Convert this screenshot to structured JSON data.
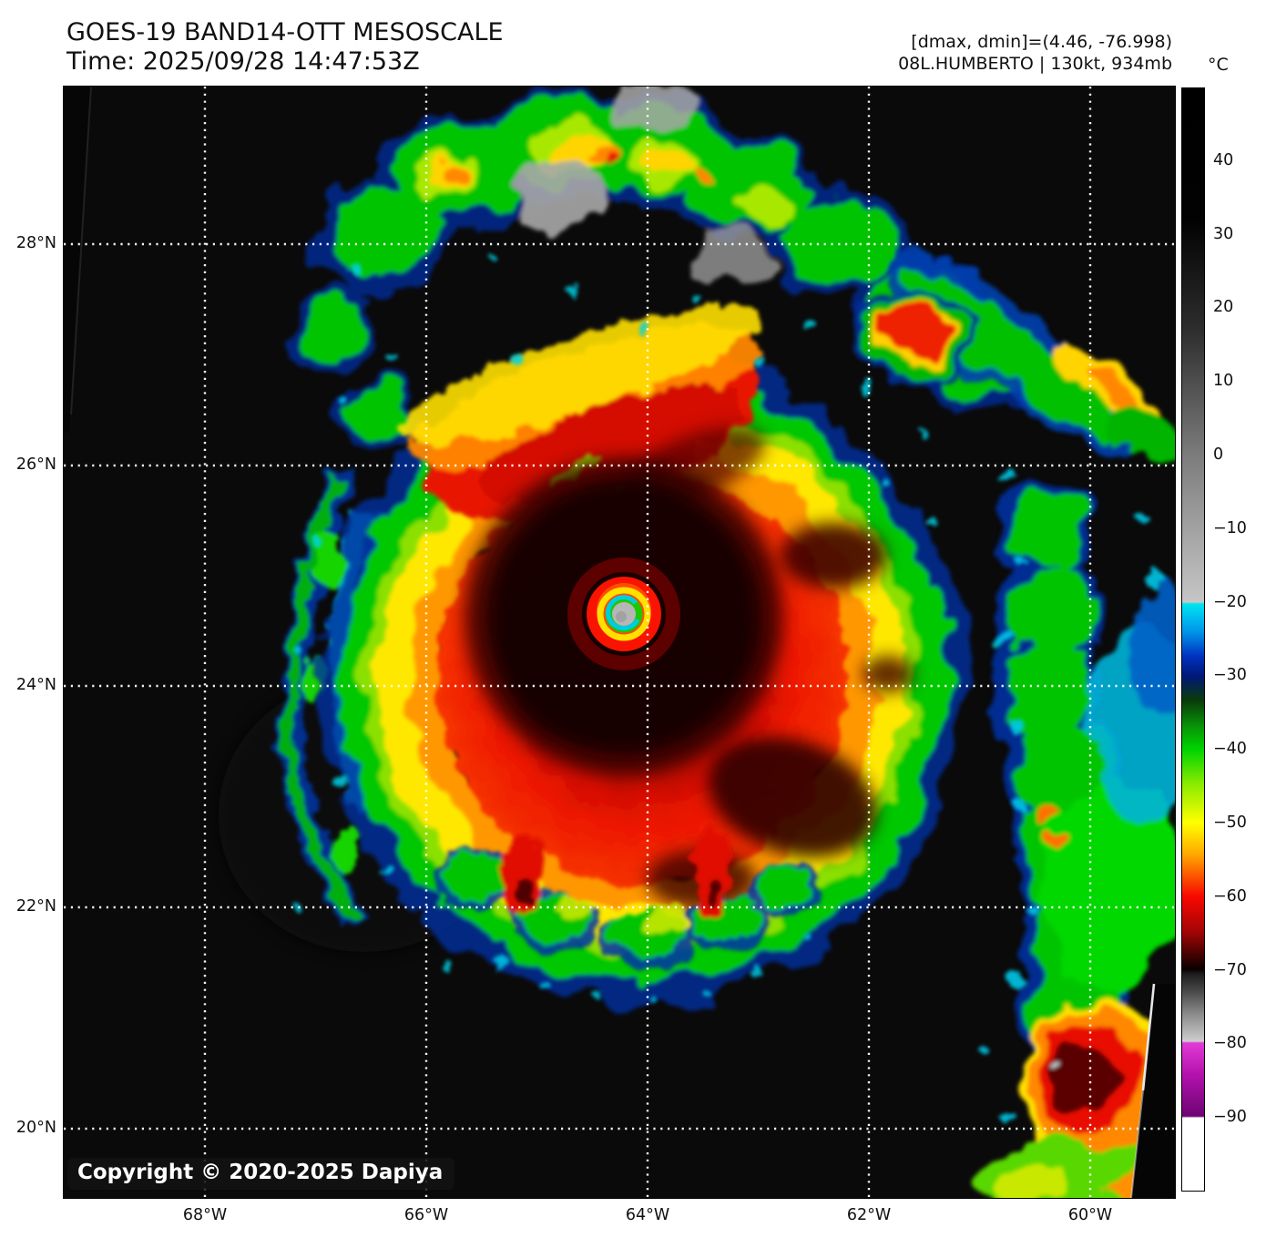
{
  "header": {
    "title": "GOES-19 BAND14-OTT MESOSCALE",
    "time_line": "Time: 2025/09/28 14:47:53Z"
  },
  "meta": {
    "range_line": "[dmax, dmin]=(4.46, -76.998)",
    "storm_line": "08L.HUMBERTO | 130kt, 934mb"
  },
  "colorbar": {
    "unit": "°C",
    "ticks": [
      {
        "label": "40",
        "value": 40
      },
      {
        "label": "30",
        "value": 30
      },
      {
        "label": "20",
        "value": 20
      },
      {
        "label": "10",
        "value": 10
      },
      {
        "label": "0",
        "value": 0
      },
      {
        "label": "−10",
        "value": -10
      },
      {
        "label": "−20",
        "value": -20
      },
      {
        "label": "−30",
        "value": -30
      },
      {
        "label": "−40",
        "value": -40
      },
      {
        "label": "−50",
        "value": -50
      },
      {
        "label": "−60",
        "value": -60
      },
      {
        "label": "−70",
        "value": -70
      },
      {
        "label": "−80",
        "value": -80
      },
      {
        "label": "−90",
        "value": -90
      }
    ],
    "range_top_c": 50,
    "range_bottom_c": -100,
    "scale": [
      {
        "temp": 50,
        "color": "#000000"
      },
      {
        "temp": 0,
        "color": "#7c7c7c"
      },
      {
        "temp": -20,
        "color": "#c6c6c6"
      },
      {
        "temp": -20.1,
        "color": "#00e6f0"
      },
      {
        "temp": -30,
        "color": "#001878"
      },
      {
        "temp": -40,
        "color": "#00d400"
      },
      {
        "temp": -50,
        "color": "#ffff00"
      },
      {
        "temp": -60,
        "color": "#f80800"
      },
      {
        "temp": -70,
        "color": "#000000"
      },
      {
        "temp": -79,
        "color": "#cdcdcd"
      },
      {
        "temp": -80,
        "color": "#e23ad6"
      },
      {
        "temp": -90,
        "color": "#6d0473"
      },
      {
        "temp": -100,
        "color": "#ffffff"
      }
    ]
  },
  "axes": {
    "lat_labels": [
      "28°N",
      "26°N",
      "24°N",
      "22°N",
      "20°N"
    ],
    "lon_labels": [
      "68°W",
      "66°W",
      "64°W",
      "62°W",
      "60°W"
    ]
  },
  "copyright": "Copyright © 2020-2025 Dapiya",
  "colors": {
    "page_background": "#ffffff",
    "map_background": "#0a0a0a",
    "gridline": "#ffffff",
    "text": "#111111"
  }
}
